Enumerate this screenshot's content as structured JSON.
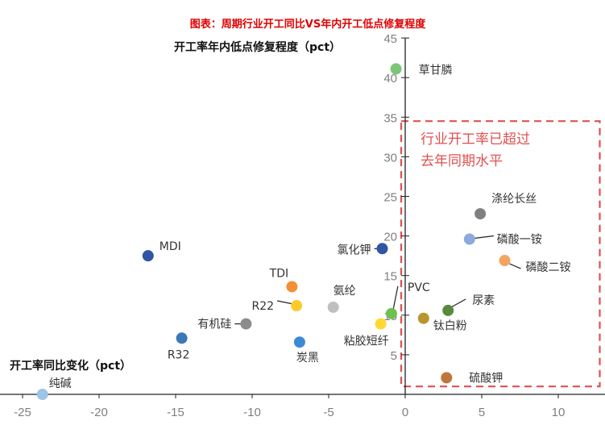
{
  "chart_data": {
    "type": "scatter",
    "title": "图表：周期行业开工同比VS年内开工低点修复程度",
    "xlabel": "开工率同比变化（pct）",
    "ylabel": "开工率年内低点修复程度（pct）",
    "xlim": [
      -25,
      12
    ],
    "ylim": [
      0,
      45
    ],
    "xticks": [
      -25,
      -20,
      -15,
      -10,
      -5,
      0,
      5,
      10
    ],
    "yticks": [
      5,
      10,
      15,
      20,
      25,
      30,
      35,
      40,
      45
    ],
    "grid": false,
    "annotation": {
      "lines": [
        "行业开工率已超过",
        "去年同期水平"
      ],
      "box_color": "#e05050",
      "x_range": [
        0,
        12.5
      ],
      "y_range": [
        1,
        34.5
      ]
    },
    "points": [
      {
        "name": "草甘膦",
        "x": -0.6,
        "y": 41.1,
        "color": "#7cc576"
      },
      {
        "name": "涤纶长丝",
        "x": 4.9,
        "y": 22.8,
        "color": "#808080"
      },
      {
        "name": "磷酸一铵",
        "x": 4.2,
        "y": 19.6,
        "color": "#8eaadb"
      },
      {
        "name": "磷酸二铵",
        "x": 6.5,
        "y": 16.9,
        "color": "#f4a460"
      },
      {
        "name": "MDI",
        "x": -16.8,
        "y": 17.5,
        "color": "#2f55a4"
      },
      {
        "name": "氯化钾",
        "x": -1.5,
        "y": 18.4,
        "color": "#2f55a4"
      },
      {
        "name": "TDI",
        "x": -7.4,
        "y": 13.6,
        "color": "#f39035"
      },
      {
        "name": "R22",
        "x": -7.1,
        "y": 11.2,
        "color": "#ffc928"
      },
      {
        "name": "氨纶",
        "x": -4.7,
        "y": 11.0,
        "color": "#bfbfbf"
      },
      {
        "name": "PVC",
        "x": -0.9,
        "y": 10.2,
        "color": "#70c050"
      },
      {
        "name": "尿素",
        "x": 2.8,
        "y": 10.6,
        "color": "#5a8a3c"
      },
      {
        "name": "钛白粉",
        "x": 1.2,
        "y": 9.6,
        "color": "#b8962e"
      },
      {
        "name": "粘胶短纤",
        "x": -1.6,
        "y": 8.9,
        "color": "#ffd930"
      },
      {
        "name": "有机硅",
        "x": -10.4,
        "y": 8.9,
        "color": "#8c8c8c"
      },
      {
        "name": "R32",
        "x": -14.6,
        "y": 7.1,
        "color": "#3a78b8"
      },
      {
        "name": "炭黑",
        "x": -6.9,
        "y": 6.6,
        "color": "#3d8ad4"
      },
      {
        "name": "硫酸钾",
        "x": 2.7,
        "y": 2.1,
        "color": "#c0763a"
      },
      {
        "name": "纯碱",
        "x": -23.7,
        "y": 0.0,
        "color": "#9dc3e6"
      }
    ]
  }
}
